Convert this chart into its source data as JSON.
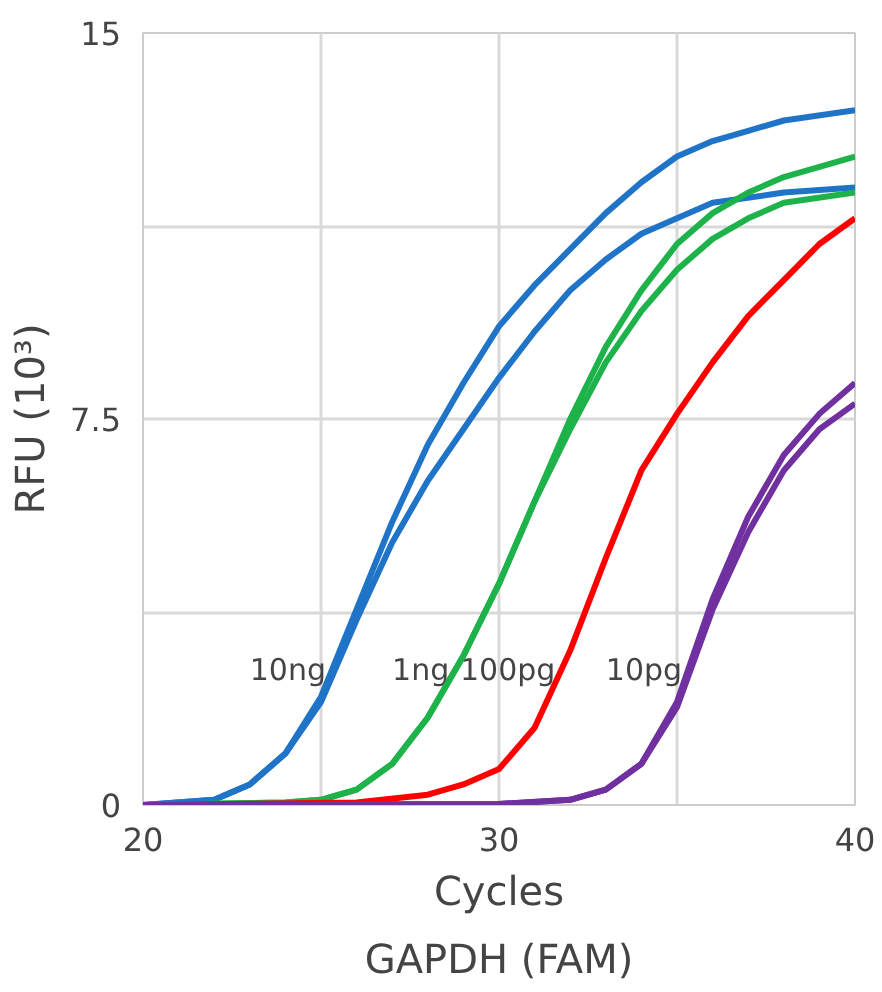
{
  "chart_data": {
    "type": "line",
    "title": "GAPDH (FAM)",
    "xlabel": "Cycles",
    "ylabel": "RFU (10³)",
    "xlim": [
      20,
      40
    ],
    "ylim": [
      0,
      15
    ],
    "xticks": [
      20,
      {
        "value": 25,
        "label": null
      },
      30,
      {
        "value": 35,
        "label": null
      },
      40
    ],
    "yticks": [
      0,
      {
        "value": 3.75,
        "label": null
      },
      7.5,
      {
        "value": 11.25,
        "label": null
      },
      15
    ],
    "grid": true,
    "legend": false,
    "marker": "none",
    "line_style": "solid",
    "series": [
      {
        "name": "10ng",
        "color": "#1f74c8",
        "x": [
          20,
          22,
          23,
          24,
          25,
          26,
          27,
          28,
          29,
          30,
          31,
          32,
          33,
          34,
          35,
          36,
          37,
          38,
          40
        ],
        "values": [
          0,
          0.1,
          0.4,
          1.0,
          2.1,
          3.8,
          5.5,
          7.0,
          8.2,
          9.3,
          10.1,
          10.8,
          11.5,
          12.1,
          12.6,
          12.9,
          13.1,
          13.3,
          13.5
        ]
      },
      {
        "color": "#1f74c8",
        "x": [
          20,
          22,
          23,
          24,
          25,
          26,
          27,
          28,
          29,
          30,
          31,
          32,
          33,
          34,
          35,
          36,
          38,
          40
        ],
        "values": [
          0,
          0.1,
          0.4,
          1.0,
          2.0,
          3.6,
          5.1,
          6.3,
          7.3,
          8.3,
          9.2,
          10.0,
          10.6,
          11.1,
          11.4,
          11.7,
          11.9,
          12.0
        ]
      },
      {
        "name": "1ng",
        "color": "#1db34a",
        "x": [
          20,
          24,
          25,
          26,
          27,
          28,
          29,
          30,
          31,
          32,
          33,
          34,
          35,
          36,
          37,
          38,
          40
        ],
        "values": [
          0,
          0.05,
          0.1,
          0.3,
          0.8,
          1.7,
          2.9,
          4.3,
          5.9,
          7.5,
          8.9,
          10.0,
          10.9,
          11.5,
          11.9,
          12.2,
          12.6
        ]
      },
      {
        "color": "#1db34a",
        "x": [
          20,
          24,
          25,
          26,
          27,
          28,
          29,
          30,
          31,
          32,
          33,
          34,
          35,
          36,
          37,
          38,
          40
        ],
        "values": [
          0,
          0.05,
          0.1,
          0.3,
          0.8,
          1.7,
          2.9,
          4.3,
          5.9,
          7.3,
          8.6,
          9.6,
          10.4,
          11.0,
          11.4,
          11.7,
          11.9
        ]
      },
      {
        "name": "100pg",
        "color": "#ff0000",
        "x": [
          20,
          26,
          28,
          29,
          30,
          31,
          32,
          33,
          34,
          35,
          36,
          37,
          38,
          39,
          40
        ],
        "values": [
          0,
          0.05,
          0.2,
          0.4,
          0.7,
          1.5,
          3.0,
          4.8,
          6.5,
          7.6,
          8.6,
          9.5,
          10.2,
          10.9,
          11.4
        ]
      },
      {
        "name": "10pg",
        "color": "#7030a0",
        "x": [
          20,
          30,
          32,
          33,
          34,
          35,
          36,
          37,
          38,
          39,
          40
        ],
        "values": [
          0,
          0.02,
          0.1,
          0.3,
          0.8,
          2.0,
          4.0,
          5.6,
          6.8,
          7.6,
          8.2
        ]
      },
      {
        "color": "#7030a0",
        "x": [
          20,
          30,
          32,
          33,
          34,
          35,
          36,
          37,
          38,
          39,
          40
        ],
        "values": [
          0,
          0.02,
          0.1,
          0.3,
          0.8,
          1.9,
          3.8,
          5.3,
          6.5,
          7.3,
          7.8
        ]
      }
    ]
  }
}
